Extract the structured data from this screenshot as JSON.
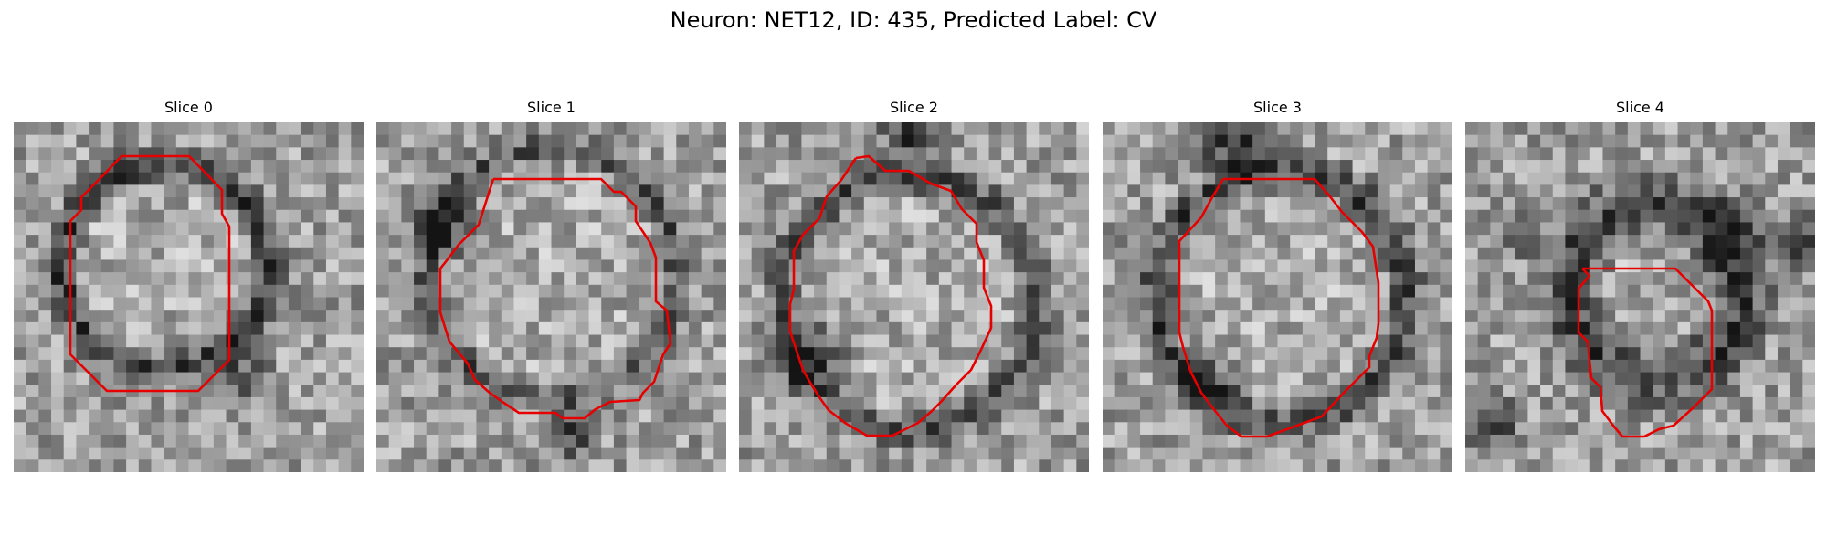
{
  "figure": {
    "title": "Neuron: NET12, ID: 435, Predicted Label: CV"
  },
  "panels": [
    {
      "title": "Slice 0"
    },
    {
      "title": "Slice 1"
    },
    {
      "title": "Slice 2"
    },
    {
      "title": "Slice 3"
    },
    {
      "title": "Slice 4"
    }
  ],
  "colors": {
    "contour": "#e60000",
    "background": "#ffffff"
  }
}
